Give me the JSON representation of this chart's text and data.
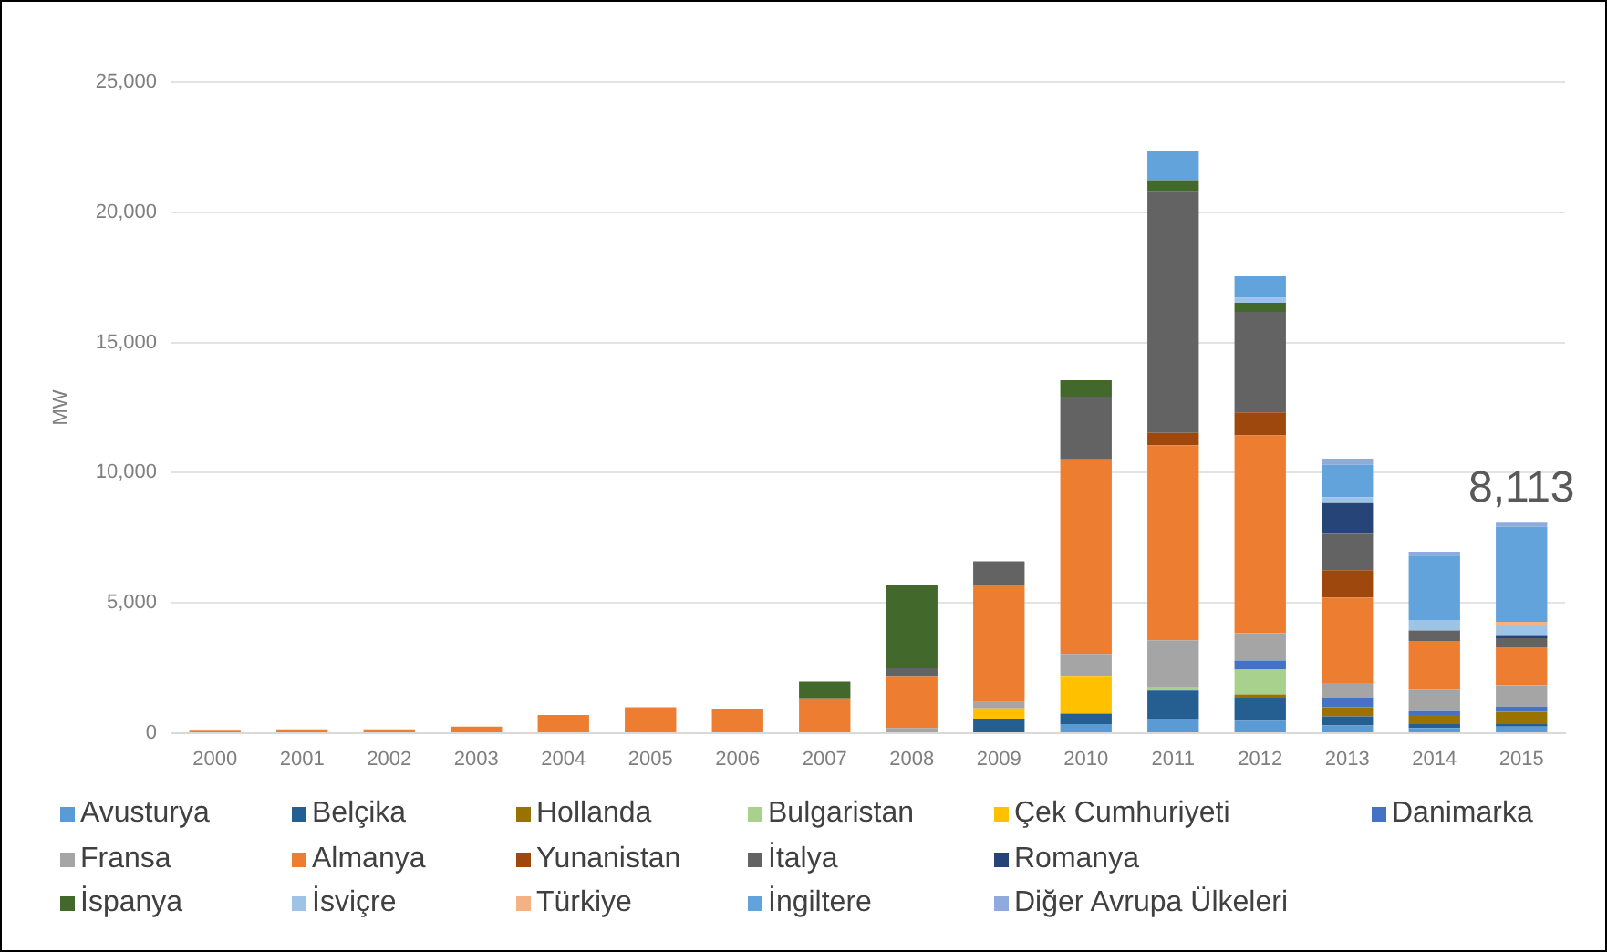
{
  "chart_data": {
    "type": "bar",
    "stacked": true,
    "ylabel": "MW",
    "categories": [
      "2000",
      "2001",
      "2002",
      "2003",
      "2004",
      "2005",
      "2006",
      "2007",
      "2008",
      "2009",
      "2010",
      "2011",
      "2012",
      "2013",
      "2014",
      "2015"
    ],
    "series": [
      {
        "name": "Avusturya",
        "color": "#5b9bd5",
        "values": [
          null,
          null,
          null,
          null,
          null,
          null,
          null,
          null,
          null,
          null,
          350,
          540,
          470,
          300,
          200,
          250
        ]
      },
      {
        "name": "Belçika",
        "color": "#255e91",
        "values": [
          null,
          null,
          null,
          null,
          null,
          null,
          null,
          null,
          null,
          550,
          400,
          1100,
          870,
          350,
          150,
          100
        ]
      },
      {
        "name": "Hollanda",
        "color": "#997300",
        "values": [
          null,
          null,
          null,
          null,
          null,
          null,
          null,
          null,
          null,
          null,
          null,
          null,
          150,
          350,
          350,
          470
        ]
      },
      {
        "name": "Bulgaristan",
        "color": "#a9d18e",
        "values": [
          null,
          null,
          null,
          null,
          null,
          null,
          null,
          null,
          null,
          null,
          null,
          120,
          940,
          null,
          null,
          null
        ]
      },
      {
        "name": "Çek Cumhuriyeti",
        "color": "#ffc000",
        "values": [
          null,
          null,
          null,
          null,
          null,
          null,
          null,
          null,
          null,
          400,
          1450,
          null,
          null,
          null,
          null,
          null
        ]
      },
      {
        "name": "Danimarka",
        "color": "#4472c4",
        "values": [
          null,
          null,
          null,
          null,
          null,
          null,
          null,
          null,
          null,
          null,
          null,
          null,
          350,
          350,
          150,
          200
        ]
      },
      {
        "name": "Fransa",
        "color": "#a5a5a5",
        "values": [
          null,
          null,
          null,
          null,
          null,
          null,
          null,
          null,
          200,
          250,
          840,
          1800,
          1050,
          580,
          820,
          820
        ]
      },
      {
        "name": "Almanya",
        "color": "#ed7d31",
        "values": [
          100,
          150,
          150,
          250,
          700,
          1000,
          920,
          1300,
          1990,
          4500,
          7470,
          7500,
          7600,
          3280,
          1870,
          1450
        ]
      },
      {
        "name": "Yunanistan",
        "color": "#9e480e",
        "values": [
          null,
          null,
          null,
          null,
          null,
          null,
          null,
          null,
          null,
          null,
          null,
          470,
          890,
          1050,
          null,
          null
        ]
      },
      {
        "name": "İtalya",
        "color": "#636363",
        "values": [
          null,
          null,
          null,
          null,
          null,
          null,
          null,
          null,
          300,
          900,
          2410,
          9240,
          3860,
          1400,
          400,
          350
        ]
      },
      {
        "name": "Romanya",
        "color": "#264478",
        "values": [
          null,
          null,
          null,
          null,
          null,
          null,
          null,
          null,
          null,
          null,
          null,
          null,
          null,
          1170,
          null,
          120
        ]
      },
      {
        "name": "İspanya",
        "color": "#43682b",
        "values": [
          null,
          null,
          null,
          null,
          null,
          null,
          null,
          680,
          3210,
          null,
          630,
          470,
          350,
          null,
          null,
          null
        ]
      },
      {
        "name": "İsviçre",
        "color": "#9dc3e6",
        "values": [
          null,
          null,
          null,
          null,
          null,
          null,
          null,
          null,
          null,
          null,
          null,
          null,
          190,
          230,
          400,
          350
        ]
      },
      {
        "name": "Türkiye",
        "color": "#f4b183",
        "values": [
          null,
          null,
          null,
          null,
          null,
          null,
          null,
          null,
          null,
          null,
          null,
          null,
          null,
          null,
          null,
          160
        ]
      },
      {
        "name": "İngiltere",
        "color": "#62a3dc",
        "values": [
          null,
          null,
          null,
          null,
          null,
          null,
          null,
          null,
          null,
          null,
          null,
          1100,
          820,
          1240,
          2480,
          3663
        ]
      },
      {
        "name": "Diğer Avrupa Ülkeleri",
        "color": "#8faadc",
        "values": [
          null,
          null,
          null,
          null,
          null,
          null,
          null,
          null,
          null,
          null,
          null,
          null,
          null,
          240,
          150,
          180
        ]
      }
    ],
    "ylim": [
      0,
      25000
    ],
    "yticks": [
      {
        "value": 0,
        "label": "0"
      },
      {
        "value": 5000,
        "label": "5,000"
      },
      {
        "value": 10000,
        "label": "10,000"
      },
      {
        "value": 15000,
        "label": "15,000"
      },
      {
        "value": 20000,
        "label": "20,000"
      },
      {
        "value": 25000,
        "label": "25,000"
      }
    ],
    "totals": [
      null,
      null,
      null,
      null,
      null,
      null,
      null,
      null,
      null,
      null,
      null,
      null,
      null,
      null,
      null,
      "8,113"
    ],
    "grid": "y",
    "legend": "bottom"
  }
}
